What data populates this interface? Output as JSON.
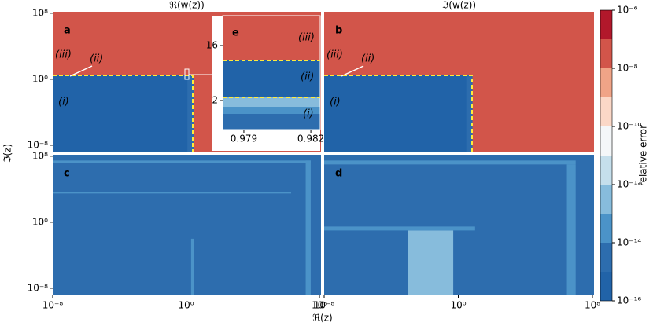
{
  "chart_data": {
    "type": "heatmap",
    "xlabel": "ℜ(z)",
    "ylabel": "ℑ(z)",
    "log_scale": true,
    "xlim": [
      1e-08,
      124000000.0
    ],
    "ylim": [
      1.7e-09,
      150000000.0
    ],
    "xticks": [
      {
        "value": 1e-08,
        "label": "10⁻⁸"
      },
      {
        "value": 1,
        "label": "10⁰"
      },
      {
        "value": 100000000.0,
        "label": "10⁸"
      }
    ],
    "yticks": [
      {
        "value": 1e-08,
        "label": "10⁻⁸"
      },
      {
        "value": 1,
        "label": "10⁰"
      },
      {
        "value": 100000000.0,
        "label": "10⁸"
      }
    ],
    "panels": [
      {
        "letter": "a",
        "title": "ℜ(w(z))",
        "annotations": [
          "(iii)",
          "(ii)",
          "(i)"
        ],
        "regions": [
          {
            "x": [
              1e-08,
              124000000.0
            ],
            "y": [
              1.7e-09,
              150000000.0
            ],
            "value": 3e-08
          },
          {
            "x": [
              1e-08,
              3
            ],
            "y": [
              1.7e-09,
              3
            ],
            "value": 5e-16
          },
          {
            "x": [
              1.2,
              3
            ],
            "y": [
              1.7e-09,
              3
            ],
            "value": 5e-15
          }
        ]
      },
      {
        "letter": "b",
        "title": "ℑ(w(z))",
        "annotations": [
          "(iii)",
          "(ii)",
          "(i)"
        ],
        "regions": [
          {
            "x": [
              1e-08,
              124000000.0
            ],
            "y": [
              1.7e-09,
              150000000.0
            ],
            "value": 3e-08
          },
          {
            "x": [
              1e-08,
              7
            ],
            "y": [
              1.7e-09,
              3
            ],
            "value": 5e-16
          },
          {
            "x": [
              3,
              7
            ],
            "y": [
              1.7e-09,
              3
            ],
            "value": 5e-15
          }
        ]
      },
      {
        "letter": "c",
        "regions": [
          {
            "x": [
              1e-08,
              124000000.0
            ],
            "y": [
              1.7e-09,
              150000000.0
            ],
            "value": 5e-15
          },
          {
            "x": [
              15000000.0,
              30000000.0
            ],
            "y": [
              1.7e-09,
              30000000.0
            ],
            "value": 5e-14
          },
          {
            "x": [
              1e-08,
              30000000.0
            ],
            "y": [
              15000000.0,
              30000000.0
            ],
            "value": 5e-14
          },
          {
            "x": [
              2,
              3
            ],
            "y": [
              1.7e-09,
              0.01
            ],
            "value": 5e-14
          },
          {
            "x": [
              1e-08,
              2000000.0
            ],
            "y": [
              3000.0,
              5000.0
            ],
            "value": 5e-14
          }
        ]
      },
      {
        "letter": "d",
        "regions": [
          {
            "x": [
              1e-08,
              124000000.0
            ],
            "y": [
              1.7e-09,
              150000000.0
            ],
            "value": 5e-15
          },
          {
            "x": [
              0.001,
              0.5
            ],
            "y": [
              1.7e-09,
              0.1
            ],
            "value": 2e-13
          },
          {
            "x": [
              1e-08,
              10
            ],
            "y": [
              0.1,
              0.3
            ],
            "value": 2e-14
          },
          {
            "x": [
              3000000.0,
              10000000.0
            ],
            "y": [
              1.7e-09,
              10000000.0
            ],
            "value": 5e-14
          },
          {
            "x": [
              1e-08,
              10000000.0
            ],
            "y": [
              10000000.0,
              30000000.0
            ],
            "value": 5e-14
          }
        ]
      }
    ],
    "inset": {
      "letter": "e",
      "annotations": [
        "(iii)",
        "(ii)",
        "(i)"
      ],
      "xlim": [
        0.97805,
        0.98242
      ],
      "ylim": [
        -5.4,
        23.6
      ],
      "xticks": [
        0.979,
        0.982
      ],
      "yticks": [
        2,
        16
      ],
      "regions": [
        {
          "x": [
            0.97805,
            0.98242
          ],
          "y": [
            12.2,
            23.6
          ],
          "value": 3e-08
        },
        {
          "x": [
            0.97805,
            0.98242
          ],
          "y": [
            2.8,
            12.2
          ],
          "value": 5e-16
        },
        {
          "x": [
            0.97805,
            0.98242
          ],
          "y": [
            0.4,
            2.8
          ],
          "value": 3e-13
        },
        {
          "x": [
            0.97805,
            0.98242
          ],
          "y": [
            -1.4,
            0.4
          ],
          "value": 5e-14
        },
        {
          "x": [
            0.97805,
            0.98242
          ],
          "y": [
            -5.4,
            -1.4
          ],
          "value": 5e-15
        }
      ]
    },
    "colorbar": {
      "label": "relative error",
      "lim": [
        1e-16,
        1e-06
      ],
      "ticks": [
        {
          "value": 1e-16,
          "label": "10⁻¹⁶"
        },
        {
          "value": 1e-14,
          "label": "10⁻¹⁴"
        },
        {
          "value": 1e-12,
          "label": "10⁻¹²"
        },
        {
          "value": 1e-10,
          "label": "10⁻¹⁰"
        },
        {
          "value": 1e-08,
          "label": "10⁻⁸"
        },
        {
          "value": 1e-06,
          "label": "10⁻⁶"
        }
      ],
      "colors": [
        "#2163a8",
        "#2d6dae",
        "#4b93c8",
        "#87bcdc",
        "#c5dfec",
        "#f4f7f9",
        "#fbd8c7",
        "#f0a487",
        "#d2554a",
        "#b2182b"
      ]
    }
  }
}
